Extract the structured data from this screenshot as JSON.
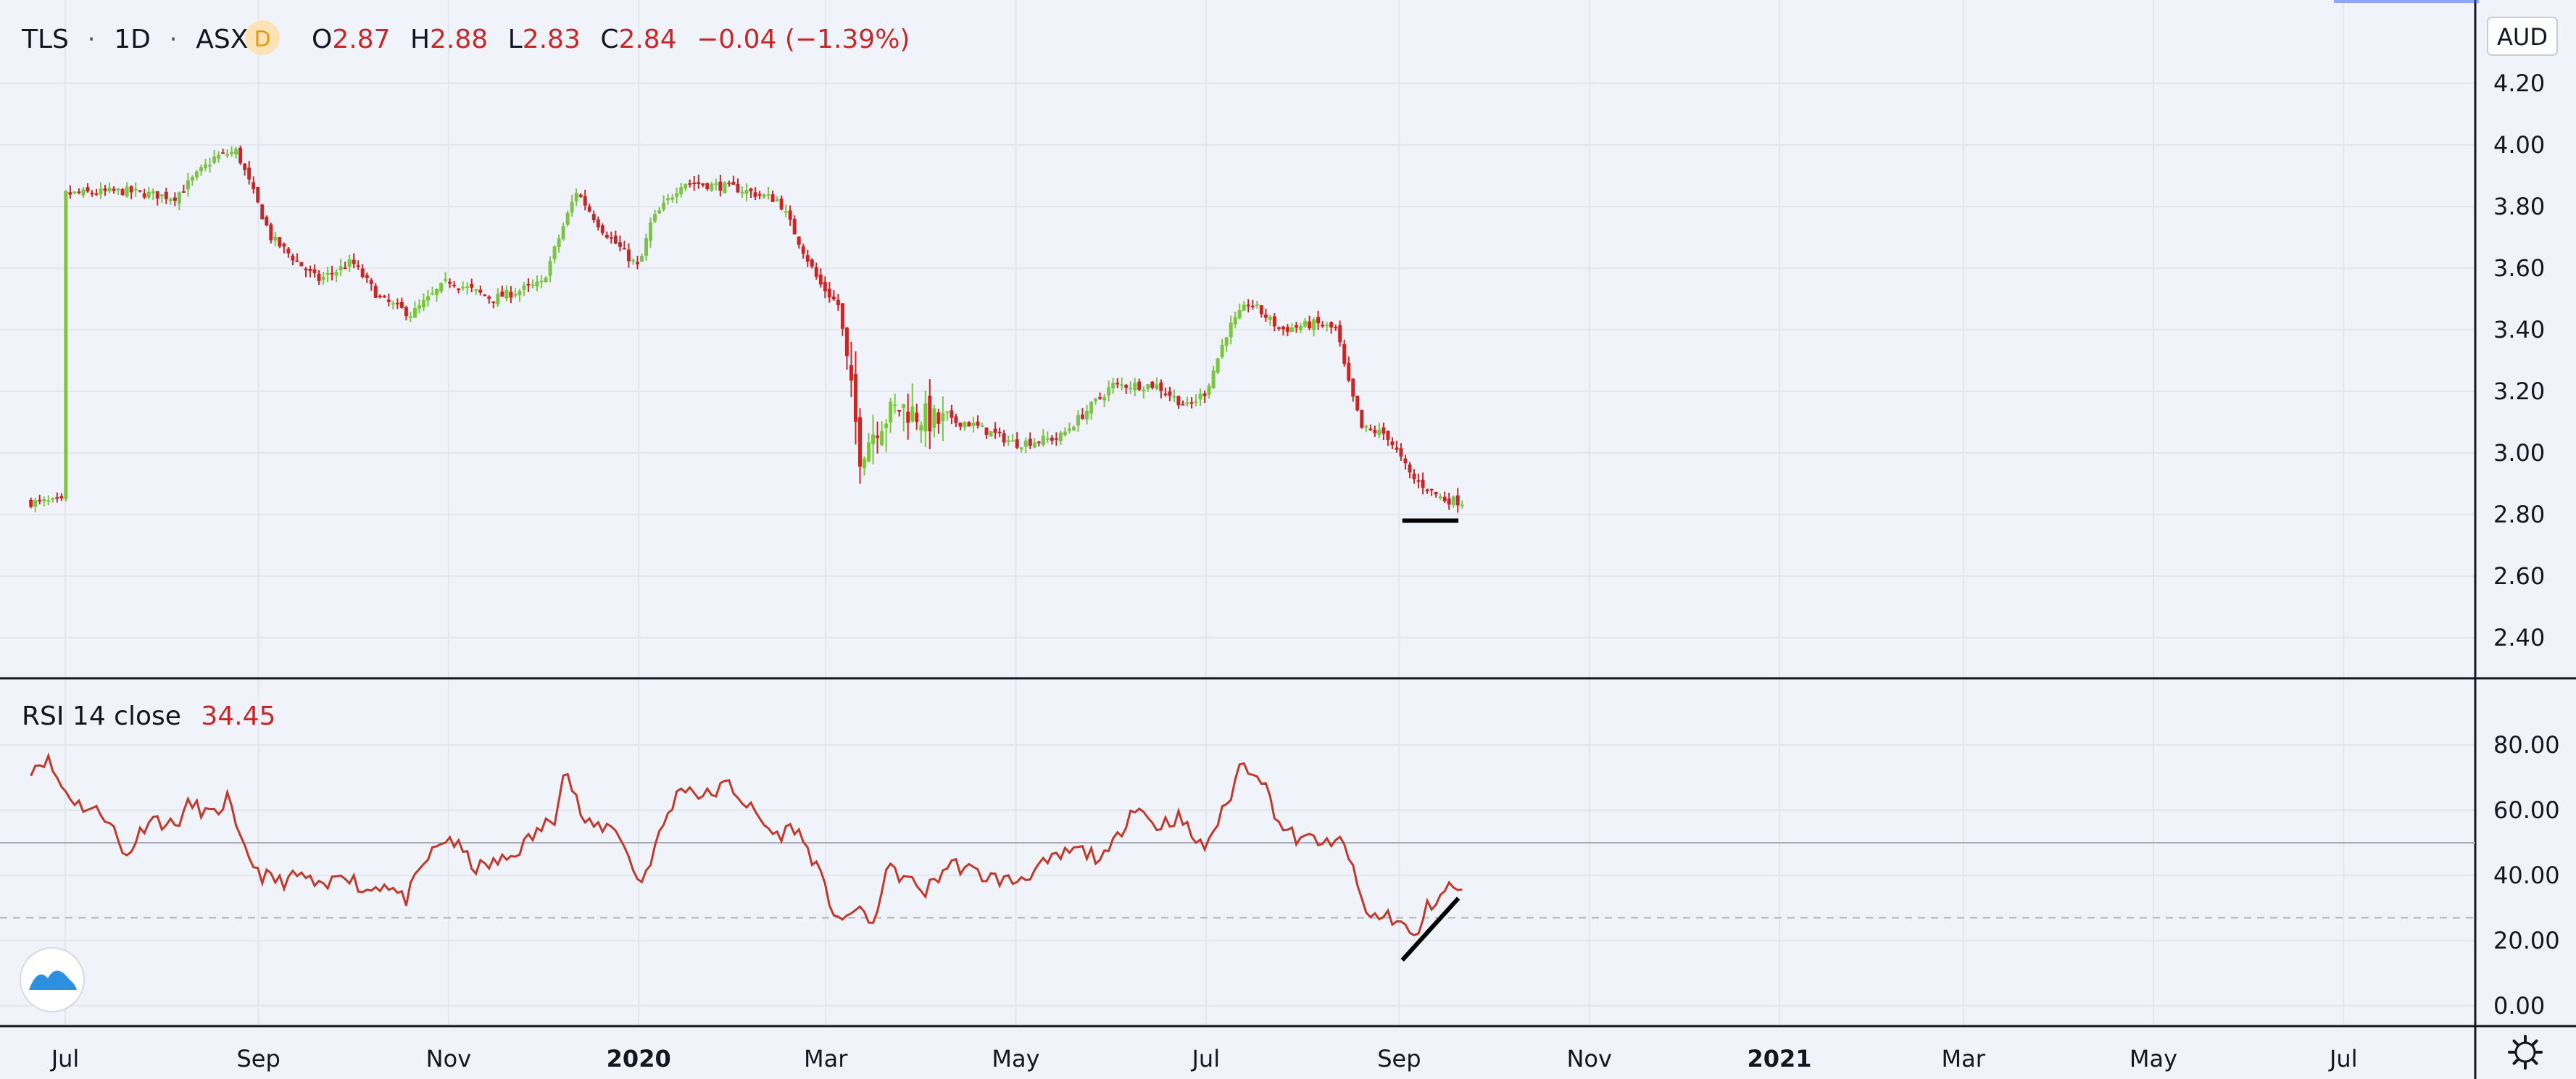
{
  "header": {
    "symbol": "TLS",
    "interval": "1D",
    "exchange": "ASX",
    "badge": "D",
    "o_label": "O",
    "o_value": "2.87",
    "h_label": "H",
    "h_value": "2.88",
    "l_label": "L",
    "l_value": "2.83",
    "c_label": "C",
    "c_value": "2.84",
    "change": "−0.04 (−1.39%)"
  },
  "currency": "AUD",
  "rsi": {
    "label": "RSI 14 close",
    "value": "34.45"
  },
  "colors": {
    "up": "#7cc540",
    "down": "#c62828",
    "rsi": "#c0392b",
    "pane": "#f0f3fa"
  },
  "chart_data": [
    {
      "type": "candlestick",
      "price_axis": [
        "4.20",
        "4.00",
        "3.80",
        "3.60",
        "3.40",
        "3.20",
        "3.00",
        "2.80",
        "2.60",
        "2.40"
      ],
      "ylim": [
        2.3,
        4.35
      ],
      "time_axis": [
        "Jul",
        "Sep",
        "Nov",
        "2020",
        "Mar",
        "May",
        "Jul",
        "Sep",
        "Nov",
        "2021",
        "Mar",
        "May",
        "Jul"
      ],
      "price_anchors": [
        [
          "2019-07-01",
          3.84
        ],
        [
          "2019-07-20",
          3.85
        ],
        [
          "2019-08-05",
          3.83
        ],
        [
          "2019-08-18",
          3.96
        ],
        [
          "2019-08-25",
          3.98
        ],
        [
          "2019-09-05",
          3.7
        ],
        [
          "2019-09-20",
          3.56
        ],
        [
          "2019-10-01",
          3.62
        ],
        [
          "2019-10-10",
          3.5
        ],
        [
          "2019-10-20",
          3.45
        ],
        [
          "2019-11-01",
          3.56
        ],
        [
          "2019-11-15",
          3.5
        ],
        [
          "2019-12-01",
          3.55
        ],
        [
          "2019-12-12",
          3.85
        ],
        [
          "2019-12-20",
          3.73
        ],
        [
          "2020-01-01",
          3.6
        ],
        [
          "2020-01-05",
          3.75
        ],
        [
          "2020-01-15",
          3.88
        ],
        [
          "2020-02-01",
          3.86
        ],
        [
          "2020-02-15",
          3.82
        ],
        [
          "2020-02-28",
          3.55
        ],
        [
          "2020-03-05",
          3.48
        ],
        [
          "2020-03-12",
          3.0
        ],
        [
          "2020-03-18",
          3.1
        ],
        [
          "2020-03-25",
          3.15
        ],
        [
          "2020-04-05",
          3.1
        ],
        [
          "2020-04-15",
          3.1
        ],
        [
          "2020-05-01",
          3.03
        ],
        [
          "2020-05-15",
          3.05
        ],
        [
          "2020-06-01",
          3.22
        ],
        [
          "2020-06-15",
          3.22
        ],
        [
          "2020-06-25",
          3.15
        ],
        [
          "2020-07-01",
          3.2
        ],
        [
          "2020-07-08",
          3.4
        ],
        [
          "2020-07-15",
          3.49
        ],
        [
          "2020-07-25",
          3.4
        ],
        [
          "2020-08-05",
          3.42
        ],
        [
          "2020-08-12",
          3.4
        ],
        [
          "2020-08-15",
          3.25
        ],
        [
          "2020-08-20",
          3.08
        ],
        [
          "2020-08-28",
          3.06
        ],
        [
          "2020-09-05",
          2.92
        ],
        [
          "2020-09-15",
          2.85
        ],
        [
          "2020-09-22",
          2.84
        ]
      ],
      "annotation": {
        "type": "horizontal-line",
        "price": 2.78,
        "from": "2020-09-02",
        "to": "2020-09-20"
      }
    },
    {
      "type": "line",
      "series_name": "RSI 14 close",
      "rsi_axis": [
        "80.00",
        "60.00",
        "40.00",
        "20.00",
        "0.00"
      ],
      "ylim": [
        -5,
        90
      ],
      "rsi_points": [
        [
          "2019-06-20",
          73
        ],
        [
          "2019-06-25",
          76
        ],
        [
          "2019-06-30",
          67
        ],
        [
          "2019-07-05",
          62
        ],
        [
          "2019-07-15",
          58
        ],
        [
          "2019-07-20",
          45
        ],
        [
          "2019-07-28",
          58
        ],
        [
          "2019-08-05",
          55
        ],
        [
          "2019-08-10",
          62
        ],
        [
          "2019-08-18",
          58
        ],
        [
          "2019-08-22",
          64
        ],
        [
          "2019-08-26",
          50
        ],
        [
          "2019-09-02",
          40
        ],
        [
          "2019-09-08",
          38
        ],
        [
          "2019-09-15",
          40
        ],
        [
          "2019-09-22",
          35
        ],
        [
          "2019-09-28",
          42
        ],
        [
          "2019-10-05",
          35
        ],
        [
          "2019-10-12",
          38
        ],
        [
          "2019-10-18",
          32
        ],
        [
          "2019-10-25",
          45
        ],
        [
          "2019-11-01",
          52
        ],
        [
          "2019-11-10",
          42
        ],
        [
          "2019-11-20",
          45
        ],
        [
          "2019-11-28",
          52
        ],
        [
          "2019-12-05",
          58
        ],
        [
          "2019-12-08",
          74
        ],
        [
          "2019-12-15",
          55
        ],
        [
          "2019-12-25",
          55
        ],
        [
          "2019-12-30",
          42
        ],
        [
          "2020-01-02",
          38
        ],
        [
          "2020-01-10",
          58
        ],
        [
          "2020-01-15",
          68
        ],
        [
          "2020-01-22",
          64
        ],
        [
          "2020-01-30",
          68
        ],
        [
          "2020-02-08",
          58
        ],
        [
          "2020-02-14",
          52
        ],
        [
          "2020-02-20",
          55
        ],
        [
          "2020-02-26",
          45
        ],
        [
          "2020-03-03",
          30
        ],
        [
          "2020-03-08",
          25
        ],
        [
          "2020-03-12",
          32
        ],
        [
          "2020-03-16",
          22
        ],
        [
          "2020-03-20",
          42
        ],
        [
          "2020-03-25",
          40
        ],
        [
          "2020-04-02",
          35
        ],
        [
          "2020-04-10",
          44
        ],
        [
          "2020-04-20",
          40
        ],
        [
          "2020-04-30",
          38
        ],
        [
          "2020-05-10",
          43
        ],
        [
          "2020-05-20",
          48
        ],
        [
          "2020-05-30",
          45
        ],
        [
          "2020-06-08",
          62
        ],
        [
          "2020-06-15",
          55
        ],
        [
          "2020-06-22",
          58
        ],
        [
          "2020-06-30",
          48
        ],
        [
          "2020-07-08",
          62
        ],
        [
          "2020-07-12",
          74
        ],
        [
          "2020-07-18",
          72
        ],
        [
          "2020-07-25",
          55
        ],
        [
          "2020-08-01",
          50
        ],
        [
          "2020-08-05",
          52
        ],
        [
          "2020-08-10",
          48
        ],
        [
          "2020-08-14",
          52
        ],
        [
          "2020-08-18",
          38
        ],
        [
          "2020-08-22",
          27
        ],
        [
          "2020-08-28",
          28
        ],
        [
          "2020-09-02",
          25
        ],
        [
          "2020-09-06",
          20
        ],
        [
          "2020-09-10",
          30
        ],
        [
          "2020-09-14",
          34
        ],
        [
          "2020-09-18",
          37
        ],
        [
          "2020-09-22",
          34
        ]
      ],
      "reference_lines": [
        50,
        27
      ],
      "annotation": {
        "type": "trend-line",
        "from": [
          "2020-09-02",
          14
        ],
        "to": [
          "2020-09-20",
          33
        ]
      }
    }
  ]
}
